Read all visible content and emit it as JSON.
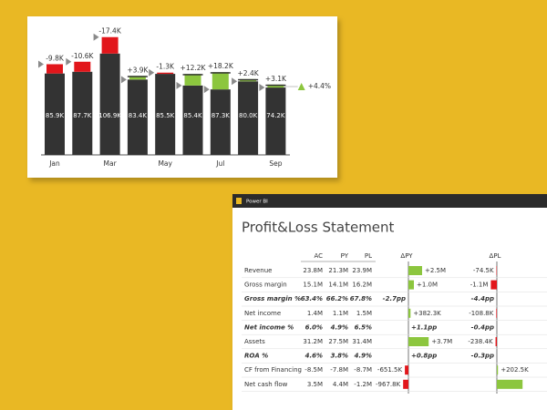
{
  "chart_data": {
    "type": "variance-column",
    "categories": [
      "Jan",
      null,
      "Mar",
      null,
      "May",
      null,
      "Jul",
      null,
      "Sep"
    ],
    "values": [
      85.9,
      87.7,
      106.9,
      83.4,
      85.5,
      85.4,
      87.3,
      80.0,
      74.2
    ],
    "value_labels": [
      "85.9K",
      "87.7K",
      "106.9K",
      "83.4K",
      "85.5K",
      "85.4K",
      "87.3K",
      "80.0K",
      "74.2K"
    ],
    "variances": [
      -9.8,
      -10.6,
      -17.4,
      3.9,
      -1.3,
      12.2,
      18.2,
      2.4,
      3.1
    ],
    "variance_labels": [
      "-9.8K",
      "-10.6K",
      "-17.4K",
      "+3.9K",
      "-1.3K",
      "+12.2K",
      "+18.2K",
      "+2.4K",
      "+3.1K"
    ],
    "total_variance": 4.4,
    "total_variance_label": "+4.4%",
    "ylim": [
      0,
      125
    ],
    "color": "#333333",
    "positive_color": "#8cc63e",
    "negative_color": "#e2161b",
    "marker_color": "#8a8a8a"
  },
  "table": {
    "app": "Power BI",
    "title": "Profit&Loss Statement",
    "columns": [
      "AC",
      "PY",
      "PL",
      "ΔPY",
      "ΔPL"
    ],
    "bar_colors": {
      "positive": "#8cc63e",
      "negative": "#e2161b"
    },
    "rows": [
      {
        "label": "Revenue",
        "cells": [
          "23.8M",
          "21.3M",
          "23.9M"
        ],
        "dpy": {
          "label": "+2.5M",
          "bar": 2.5
        },
        "dpl": {
          "label": "-74.5K",
          "bar": -0.0745
        }
      },
      {
        "label": "Gross margin",
        "cells": [
          "15.1M",
          "14.1M",
          "16.2M"
        ],
        "dpy": {
          "label": "+1.0M",
          "bar": 1.0
        },
        "dpl": {
          "label": "-1.1M",
          "bar": -1.1
        }
      },
      {
        "label": "Gross margin %",
        "cells": [
          "63.4%",
          "66.2%",
          "67.8%"
        ],
        "dpy": {
          "label": "-2.7pp",
          "bar": null
        },
        "dpl": {
          "label": "-4.4pp",
          "bar": null
        },
        "emphasis": true
      },
      {
        "label": "Net income",
        "cells": [
          "1.4M",
          "1.1M",
          "1.5M"
        ],
        "dpy": {
          "label": "+382.3K",
          "bar": 0.3823
        },
        "dpl": {
          "label": "-108.8K",
          "bar": -0.1088
        }
      },
      {
        "label": "Net income %",
        "cells": [
          "6.0%",
          "4.9%",
          "6.5%"
        ],
        "dpy": {
          "label": "+1.1pp",
          "bar": null
        },
        "dpl": {
          "label": "-0.4pp",
          "bar": null
        },
        "emphasis": true
      },
      {
        "label": "Assets",
        "cells": [
          "31.2M",
          "27.5M",
          "31.4M"
        ],
        "dpy": {
          "label": "+3.7M",
          "bar": 3.7
        },
        "dpl": {
          "label": "-238.4K",
          "bar": -0.2384
        }
      },
      {
        "label": "ROA %",
        "cells": [
          "4.6%",
          "3.8%",
          "4.9%"
        ],
        "dpy": {
          "label": "+0.8pp",
          "bar": null
        },
        "dpl": {
          "label": "-0.3pp",
          "bar": null
        },
        "emphasis": true
      },
      {
        "label": "CF from Financing",
        "cells": [
          "-8.5M",
          "-7.8M",
          "-8.7M"
        ],
        "dpy": {
          "label": "-651.5K",
          "bar": -0.6515
        },
        "dpl": {
          "label": "+202.5K",
          "bar": 0.2025
        }
      },
      {
        "label": "Net cash flow",
        "cells": [
          "3.5M",
          "4.4M",
          "-1.2M"
        ],
        "dpy": {
          "label": "-967.8K",
          "bar": -0.9678
        },
        "dpl": {
          "label": null,
          "bar": 4.7
        }
      }
    ]
  }
}
